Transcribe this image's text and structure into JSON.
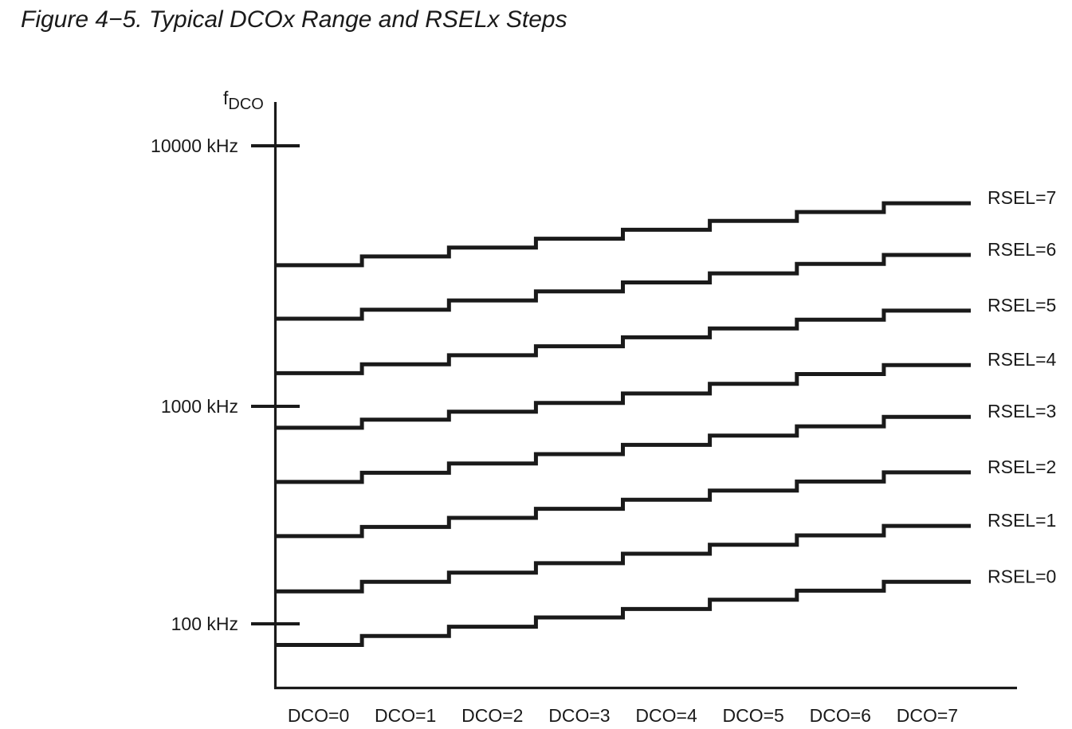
{
  "figure": {
    "title": "Figure 4−5. Typical DCOx Range and RSELx Steps"
  },
  "chart_data": {
    "type": "line",
    "subtype": "staircase-steps",
    "title": "Figure 4−5. Typical DCOx Range and RSELx Steps",
    "grid": false,
    "background": "#ffffff",
    "line_color": "#1a1a1a",
    "text_color": "#1a1a1a",
    "legend_position": "right-of-lines",
    "x_axis": {
      "categories": [
        "DCO=0",
        "DCO=1",
        "DCO=2",
        "DCO=3",
        "DCO=4",
        "DCO=5",
        "DCO=6",
        "DCO=7"
      ]
    },
    "y_axis": {
      "label_main": "f",
      "label_sub": "DCO",
      "scale": "log",
      "unit": "kHz",
      "range_kHz": [
        60,
        20000
      ],
      "ticks": [
        {
          "value": 100,
          "label": "100 kHz"
        },
        {
          "value": 1000,
          "label": "1000 kHz"
        },
        {
          "value": 10000,
          "label": "10000 kHz"
        }
      ]
    },
    "series": [
      {
        "name": "RSEL=0",
        "values_kHz": [
          80,
          88,
          97,
          107,
          117,
          129,
          142,
          156
        ]
      },
      {
        "name": "RSEL=1",
        "values_kHz": [
          141,
          156,
          172,
          190,
          210,
          231,
          255,
          282
        ]
      },
      {
        "name": "RSEL=2",
        "values_kHz": [
          253,
          279,
          307,
          338,
          372,
          410,
          451,
          497
        ]
      },
      {
        "name": "RSEL=3",
        "values_kHz": [
          449,
          495,
          546,
          603,
          665,
          733,
          809,
          895
        ]
      },
      {
        "name": "RSEL=4",
        "values_kHz": [
          797,
          868,
          944,
          1030,
          1120,
          1220,
          1330,
          1440
        ]
      },
      {
        "name": "RSEL=5",
        "values_kHz": [
          1340,
          1450,
          1570,
          1700,
          1840,
          1990,
          2150,
          2330
        ]
      },
      {
        "name": "RSEL=6",
        "values_kHz": [
          2170,
          2350,
          2550,
          2760,
          2990,
          3240,
          3520,
          3810
        ]
      },
      {
        "name": "RSEL=7",
        "values_kHz": [
          3480,
          3760,
          4070,
          4400,
          4760,
          5150,
          5570,
          6020
        ]
      }
    ]
  }
}
